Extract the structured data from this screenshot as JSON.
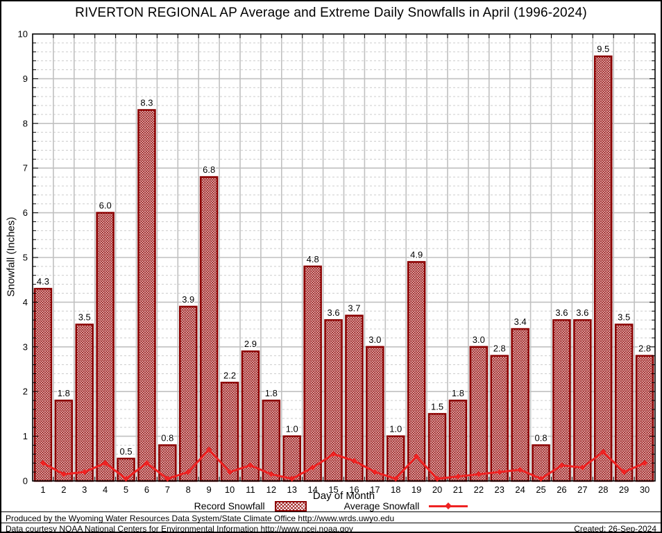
{
  "page": {
    "footer_line1": "Produced by the Wyoming Water Resources Data System/State Climate Office http://www.wrds.uwyo.edu",
    "footer_line2": "Data courtesy NOAA National Centers for Environmental Information http://www.ncei.noaa.gov",
    "created": "Created: 26-Sep-2024"
  },
  "colors": {
    "bar_border": "#8b0000",
    "bar_hatch": "#a02020",
    "average_line": "#ee2222",
    "grid_major": "#c0c0c0",
    "grid_minor": "#cccccc",
    "axis": "#000000",
    "background": "#ffffff"
  },
  "chart_data": {
    "type": "bar",
    "title": "RIVERTON REGIONAL AP Average and Extreme Daily Snowfalls in April (1996-2024)",
    "xlabel": "Day of Month",
    "ylabel": "Snowfall (Inches)",
    "ylim": [
      0,
      10
    ],
    "y_major_step": 1,
    "y_minor_step": 0.2,
    "grid": true,
    "legend_position": "bottom",
    "categories": [
      1,
      2,
      3,
      4,
      5,
      6,
      7,
      8,
      9,
      10,
      11,
      12,
      13,
      14,
      15,
      16,
      17,
      18,
      19,
      20,
      21,
      22,
      23,
      24,
      25,
      26,
      27,
      28,
      29,
      30
    ],
    "series": [
      {
        "name": "Record Snowfall",
        "type": "bar",
        "values": [
          4.3,
          1.8,
          3.5,
          6.0,
          0.5,
          8.3,
          0.8,
          3.9,
          6.8,
          2.2,
          2.9,
          1.8,
          1.0,
          4.8,
          3.6,
          3.7,
          3.0,
          1.0,
          4.9,
          1.5,
          1.8,
          3.0,
          2.8,
          3.4,
          0.8,
          3.6,
          3.6,
          9.5,
          3.5,
          2.8
        ]
      },
      {
        "name": "Average Snowfall",
        "type": "line",
        "values": [
          0.4,
          0.15,
          0.2,
          0.4,
          0.05,
          0.4,
          0.05,
          0.2,
          0.7,
          0.2,
          0.35,
          0.15,
          0.05,
          0.3,
          0.6,
          0.45,
          0.2,
          0.05,
          0.55,
          0.05,
          0.1,
          0.15,
          0.2,
          0.25,
          0.05,
          0.35,
          0.3,
          0.65,
          0.2,
          0.4
        ]
      }
    ]
  }
}
